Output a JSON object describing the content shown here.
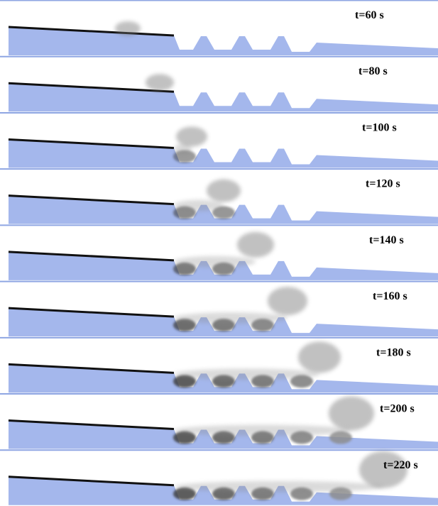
{
  "panels": [
    {
      "label": "t=60 s"
    },
    {
      "label": "t=80 s"
    },
    {
      "label": "t=100 s"
    },
    {
      "label": "t=120 s"
    },
    {
      "label": "t=140 s"
    },
    {
      "label": "t=160 s"
    },
    {
      "label": "t=180 s"
    },
    {
      "label": "t=200 s"
    },
    {
      "label": "t=220 s"
    }
  ]
}
